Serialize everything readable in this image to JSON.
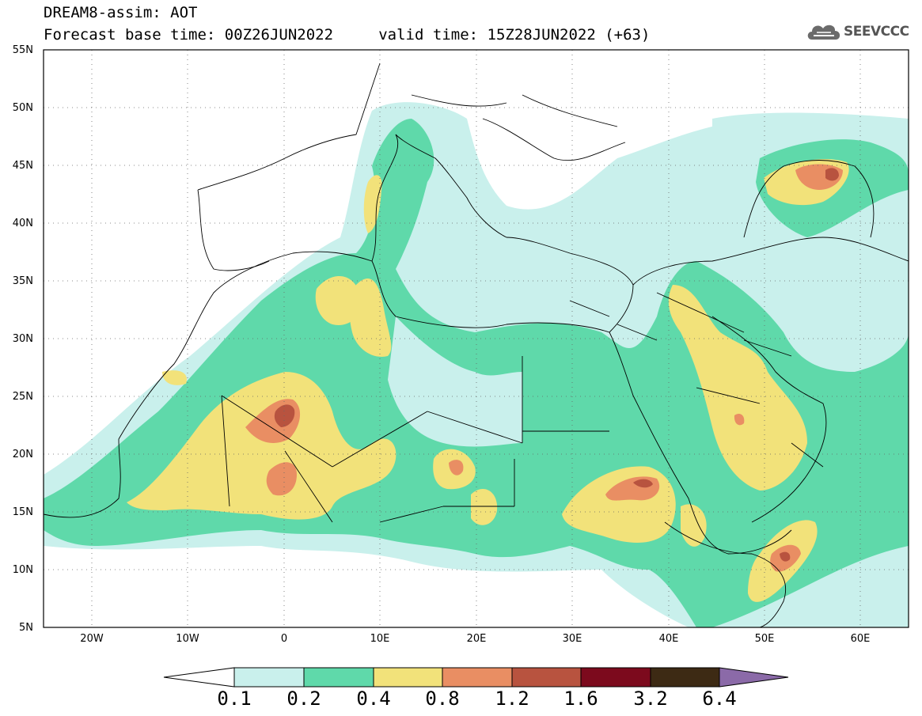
{
  "header": {
    "title": "DREAM8-assim: AOT",
    "subtitle": "Forecast base time: 00Z26JUN2022     valid time: 15Z28JUN2022 (+63)"
  },
  "logo": {
    "text": "SEEVCCC",
    "icon": "cloud-icon"
  },
  "axes": {
    "lat_labels": [
      "55N",
      "50N",
      "45N",
      "40N",
      "35N",
      "30N",
      "25N",
      "20N",
      "15N",
      "10N",
      "5N"
    ],
    "lon_labels": [
      "20W",
      "10W",
      "0",
      "10E",
      "20E",
      "30E",
      "40E",
      "50E",
      "60E"
    ]
  },
  "colorbar": {
    "labels": [
      "0.1",
      "0.2",
      "0.4",
      "0.8",
      "1.2",
      "1.6",
      "3.2",
      "6.4"
    ],
    "colors": [
      "#ffffff",
      "#c9f0ec",
      "#5fd9aa",
      "#f2e27a",
      "#e98e63",
      "#b8533f",
      "#7c0a1d",
      "#3d2a14",
      "#8b6aa8"
    ]
  },
  "map": {
    "lon_range": [
      -25,
      65
    ],
    "lat_range": [
      5,
      55
    ],
    "field": "AOT",
    "colors": {
      "lev1": "#c9f0ec",
      "lev2": "#5fd9aa",
      "lev3": "#f2e27a",
      "lev4": "#e98e63",
      "lev5": "#b8533f"
    }
  }
}
